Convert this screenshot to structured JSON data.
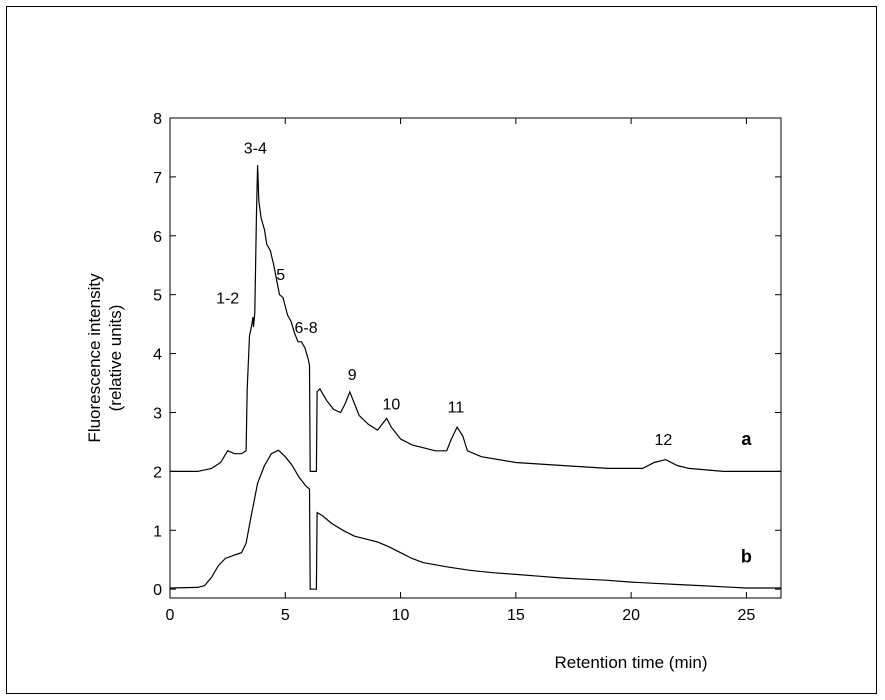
{
  "chart_data": {
    "type": "line",
    "xlabel": "Retention time (min)",
    "ylabel_lines": [
      "Fluorescence intensity",
      "(relative units)"
    ],
    "xlim": [
      0,
      26.5
    ],
    "ylim": [
      -0.15,
      8
    ],
    "xticks": [
      0,
      5,
      10,
      15,
      20,
      25
    ],
    "yticks": [
      0,
      1,
      2,
      3,
      4,
      5,
      6,
      7,
      8
    ],
    "grid": false,
    "legend": "none",
    "series": [
      {
        "name": "a",
        "points": [
          [
            0,
            2.0
          ],
          [
            1.2,
            2.0
          ],
          [
            1.8,
            2.05
          ],
          [
            2.2,
            2.15
          ],
          [
            2.5,
            2.35
          ],
          [
            2.8,
            2.3
          ],
          [
            3.1,
            2.3
          ],
          [
            3.3,
            2.35
          ],
          [
            3.35,
            3.4
          ],
          [
            3.45,
            4.3
          ],
          [
            3.55,
            4.5
          ],
          [
            3.6,
            4.62
          ],
          [
            3.62,
            4.45
          ],
          [
            3.68,
            4.7
          ],
          [
            3.75,
            6.4
          ],
          [
            3.8,
            7.2
          ],
          [
            3.85,
            6.6
          ],
          [
            3.95,
            6.3
          ],
          [
            4.1,
            6.1
          ],
          [
            4.2,
            5.85
          ],
          [
            4.35,
            5.75
          ],
          [
            4.5,
            5.5
          ],
          [
            4.65,
            5.2
          ],
          [
            4.75,
            5.0
          ],
          [
            4.9,
            4.95
          ],
          [
            5.0,
            4.8
          ],
          [
            5.1,
            4.65
          ],
          [
            5.25,
            4.55
          ],
          [
            5.4,
            4.35
          ],
          [
            5.55,
            4.2
          ],
          [
            5.7,
            4.2
          ],
          [
            5.85,
            4.1
          ],
          [
            6.0,
            3.9
          ],
          [
            6.05,
            3.8
          ],
          [
            6.08,
            2.0
          ],
          [
            6.35,
            2.0
          ],
          [
            6.38,
            3.35
          ],
          [
            6.5,
            3.4
          ],
          [
            6.8,
            3.2
          ],
          [
            7.1,
            3.05
          ],
          [
            7.4,
            3.0
          ],
          [
            7.6,
            3.15
          ],
          [
            7.8,
            3.35
          ],
          [
            7.95,
            3.2
          ],
          [
            8.2,
            2.95
          ],
          [
            8.6,
            2.8
          ],
          [
            9.0,
            2.7
          ],
          [
            9.2,
            2.8
          ],
          [
            9.4,
            2.9
          ],
          [
            9.6,
            2.75
          ],
          [
            10.0,
            2.55
          ],
          [
            10.5,
            2.45
          ],
          [
            11.0,
            2.4
          ],
          [
            11.5,
            2.35
          ],
          [
            12.0,
            2.35
          ],
          [
            12.2,
            2.55
          ],
          [
            12.45,
            2.75
          ],
          [
            12.7,
            2.6
          ],
          [
            12.9,
            2.35
          ],
          [
            13.5,
            2.25
          ],
          [
            15.0,
            2.15
          ],
          [
            17.0,
            2.1
          ],
          [
            19.0,
            2.05
          ],
          [
            20.5,
            2.05
          ],
          [
            21.0,
            2.15
          ],
          [
            21.5,
            2.2
          ],
          [
            22.0,
            2.1
          ],
          [
            22.5,
            2.05
          ],
          [
            24.0,
            2.0
          ],
          [
            26.5,
            2.0
          ]
        ]
      },
      {
        "name": "b",
        "points": [
          [
            0,
            0.02
          ],
          [
            1.2,
            0.03
          ],
          [
            1.5,
            0.06
          ],
          [
            1.8,
            0.2
          ],
          [
            2.1,
            0.4
          ],
          [
            2.4,
            0.52
          ],
          [
            2.8,
            0.58
          ],
          [
            3.1,
            0.62
          ],
          [
            3.3,
            0.78
          ],
          [
            3.5,
            1.2
          ],
          [
            3.8,
            1.8
          ],
          [
            4.1,
            2.1
          ],
          [
            4.4,
            2.3
          ],
          [
            4.7,
            2.36
          ],
          [
            5.0,
            2.25
          ],
          [
            5.3,
            2.1
          ],
          [
            5.6,
            1.9
          ],
          [
            5.9,
            1.75
          ],
          [
            6.05,
            1.7
          ],
          [
            6.08,
            0.0
          ],
          [
            6.35,
            0.0
          ],
          [
            6.38,
            1.3
          ],
          [
            6.6,
            1.25
          ],
          [
            7.0,
            1.12
          ],
          [
            7.5,
            1.0
          ],
          [
            8.0,
            0.9
          ],
          [
            8.5,
            0.85
          ],
          [
            9.0,
            0.8
          ],
          [
            9.5,
            0.72
          ],
          [
            10.0,
            0.62
          ],
          [
            10.5,
            0.52
          ],
          [
            11.0,
            0.45
          ],
          [
            12.0,
            0.38
          ],
          [
            13.0,
            0.32
          ],
          [
            14.0,
            0.28
          ],
          [
            15.0,
            0.25
          ],
          [
            16.0,
            0.22
          ],
          [
            17.0,
            0.19
          ],
          [
            18.0,
            0.17
          ],
          [
            19.0,
            0.15
          ],
          [
            20.0,
            0.12
          ],
          [
            21.0,
            0.1
          ],
          [
            22.0,
            0.08
          ],
          [
            23.0,
            0.06
          ],
          [
            24.0,
            0.04
          ],
          [
            25.0,
            0.02
          ],
          [
            26.5,
            0.02
          ]
        ]
      }
    ],
    "series_labels": [
      {
        "text": "a",
        "x": 25.0,
        "y": 2.45
      },
      {
        "text": "b",
        "x": 25.0,
        "y": 0.45
      }
    ],
    "peak_labels": [
      {
        "text": "1-2",
        "x": 2.5,
        "y": 4.85
      },
      {
        "text": "3-4",
        "x": 3.7,
        "y": 7.4
      },
      {
        "text": "5",
        "x": 4.8,
        "y": 5.25
      },
      {
        "text": "6-8",
        "x": 5.9,
        "y": 4.35
      },
      {
        "text": "9",
        "x": 7.9,
        "y": 3.55
      },
      {
        "text": "10",
        "x": 9.6,
        "y": 3.05
      },
      {
        "text": "11",
        "x": 12.4,
        "y": 3.0
      },
      {
        "text": "12",
        "x": 21.4,
        "y": 2.45
      }
    ]
  }
}
